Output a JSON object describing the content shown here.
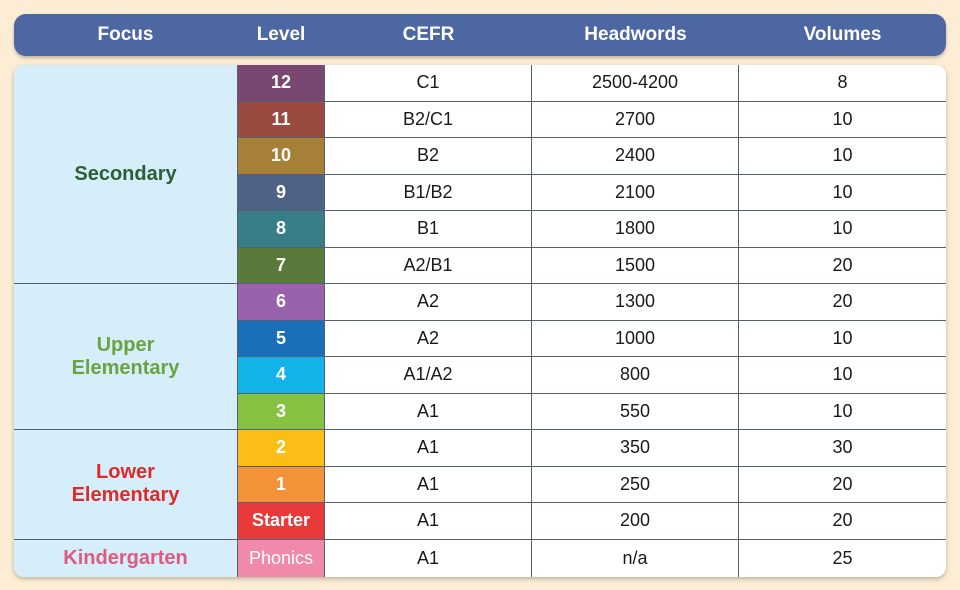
{
  "header": {
    "focus": "Focus",
    "level": "Level",
    "cefr": "CEFR",
    "headwords": "Headwords",
    "volumes": "Volumes"
  },
  "groups": [
    {
      "label": "Secondary",
      "color": "#2e5e35"
    },
    {
      "label": "Upper\nElementary",
      "color": "#6aa342"
    },
    {
      "label": "Lower\nElementary",
      "color": "#dd2b2b"
    },
    {
      "label": "Kindergarten",
      "color": "#e05a7e"
    }
  ],
  "rows": [
    {
      "level": "12",
      "cefr": "C1",
      "headwords": "2500-4200",
      "volumes": "8",
      "level_color": "#7a4772"
    },
    {
      "level": "11",
      "cefr": "B2/C1",
      "headwords": "2700",
      "volumes": "10",
      "level_color": "#9a4a3f"
    },
    {
      "level": "10",
      "cefr": "B2",
      "headwords": "2400",
      "volumes": "10",
      "level_color": "#a78038"
    },
    {
      "level": "9",
      "cefr": "B1/B2",
      "headwords": "2100",
      "volumes": "10",
      "level_color": "#4e6285"
    },
    {
      "level": "8",
      "cefr": "B1",
      "headwords": "1800",
      "volumes": "10",
      "level_color": "#377e88"
    },
    {
      "level": "7",
      "cefr": "A2/B1",
      "headwords": "1500",
      "volumes": "20",
      "level_color": "#5a7a3c"
    },
    {
      "level": "6",
      "cefr": "A2",
      "headwords": "1300",
      "volumes": "20",
      "level_color": "#9a62ad"
    },
    {
      "level": "5",
      "cefr": "A2",
      "headwords": "1000",
      "volumes": "10",
      "level_color": "#1a6fb8"
    },
    {
      "level": "4",
      "cefr": "A1/A2",
      "headwords": "800",
      "volumes": "10",
      "level_color": "#12b3e8"
    },
    {
      "level": "3",
      "cefr": "A1",
      "headwords": "550",
      "volumes": "10",
      "level_color": "#86c140"
    },
    {
      "level": "2",
      "cefr": "A1",
      "headwords": "350",
      "volumes": "30",
      "level_color": "#fbbe16"
    },
    {
      "level": "1",
      "cefr": "A1",
      "headwords": "250",
      "volumes": "20",
      "level_color": "#f4923a"
    },
    {
      "level": "Starter",
      "cefr": "A1",
      "headwords": "200",
      "volumes": "20",
      "level_color": "#e83a3a"
    },
    {
      "level": "Phonics",
      "cefr": "A1",
      "headwords": "n/a",
      "volumes": "25",
      "level_color": "#f08aaa"
    }
  ]
}
